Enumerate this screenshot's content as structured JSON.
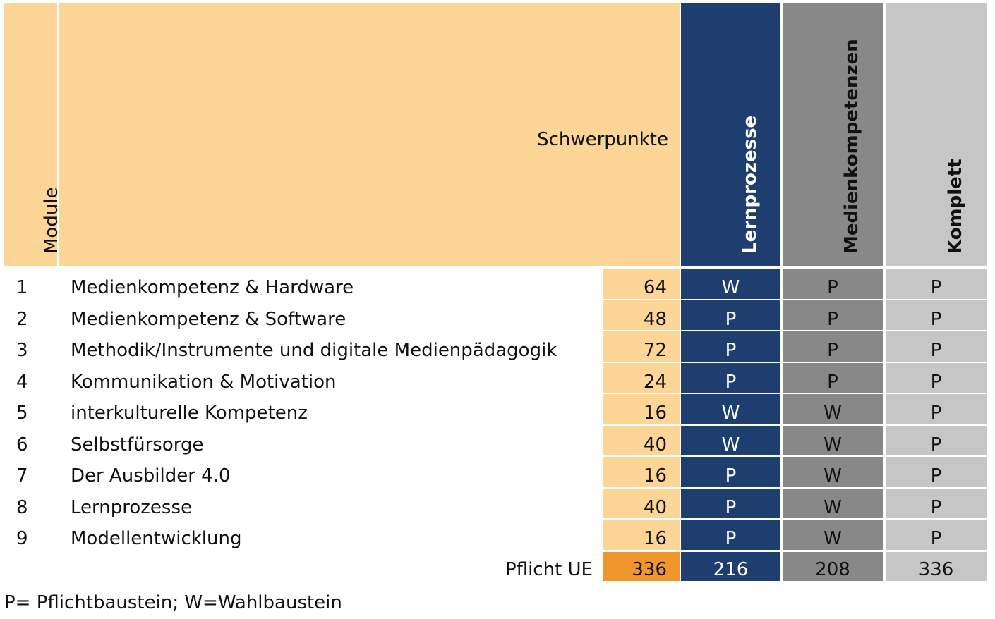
{
  "header": {
    "module_label": "Module",
    "schwerpunkte_label": "Schwerpunkte",
    "columns": [
      "Lernprozesse",
      "Medienkompetenzen",
      "Komplett"
    ]
  },
  "colors": {
    "peach": "#fcd597",
    "navy": "#1f3e70",
    "darkgray": "#888888",
    "lightgray": "#c6c6c6",
    "orange": "#f0962a"
  },
  "rows": [
    {
      "num": "1",
      "name": "Medienkompetenz & Hardware",
      "ue": "64",
      "lern": "W",
      "medien": "P",
      "komplett": "P"
    },
    {
      "num": "2",
      "name": "Medienkompetenz & Software",
      "ue": "48",
      "lern": "P",
      "medien": "P",
      "komplett": "P"
    },
    {
      "num": "3",
      "name": "Methodik/Instrumente und digitale Medienpädagogik",
      "ue": "72",
      "lern": "P",
      "medien": "P",
      "komplett": "P"
    },
    {
      "num": "4",
      "name": "Kommunikation & Motivation",
      "ue": "24",
      "lern": "P",
      "medien": "P",
      "komplett": "P"
    },
    {
      "num": "5",
      "name": "interkulturelle Kompetenz",
      "ue": "16",
      "lern": "W",
      "medien": "W",
      "komplett": "P"
    },
    {
      "num": "6",
      "name": "Selbstfürsorge",
      "ue": "40",
      "lern": "W",
      "medien": "W",
      "komplett": "P"
    },
    {
      "num": "7",
      "name": "Der Ausbilder 4.0",
      "ue": "16",
      "lern": "P",
      "medien": "W",
      "komplett": "P"
    },
    {
      "num": "8",
      "name": "Lernprozesse",
      "ue": "40",
      "lern": "P",
      "medien": "W",
      "komplett": "P"
    },
    {
      "num": "9",
      "name": "Modellentwicklung",
      "ue": "16",
      "lern": "P",
      "medien": "W",
      "komplett": "P"
    }
  ],
  "totals": {
    "label": "Pflicht UE",
    "ue": "336",
    "lern": "216",
    "medien": "208",
    "komplett": "336"
  },
  "footnote": "P= Pflichtbaustein; W=Wahlbaustein"
}
